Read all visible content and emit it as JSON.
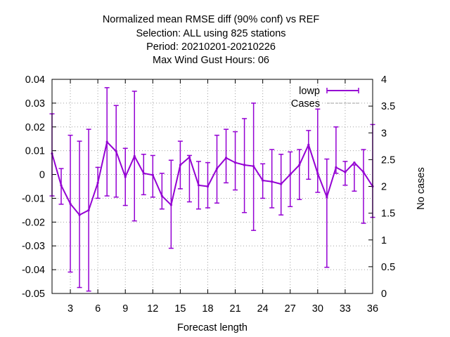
{
  "chart_data": {
    "type": "line",
    "title_lines": [
      "Normalized mean RMSE diff (90% conf) vs REF",
      "Selection: ALL using   825 stations",
      "Period: 20210201-20210226",
      "Max Wind Gust   Hours:  06"
    ],
    "xlabel": "Forecast length",
    "ylabel": "",
    "y2label": "No cases",
    "xlim": [
      1,
      36
    ],
    "ylim": [
      -0.05,
      0.04
    ],
    "y2lim": [
      0,
      4
    ],
    "x_ticks": [
      3,
      6,
      9,
      12,
      15,
      18,
      21,
      24,
      27,
      30,
      33,
      36
    ],
    "y_ticks": [
      -0.05,
      -0.04,
      -0.03,
      -0.02,
      -0.01,
      0,
      0.01,
      0.02,
      0.03,
      0.04
    ],
    "y_tick_labels": [
      "-0.05",
      "-0.04",
      "-0.03",
      "-0.02",
      "-0.01",
      "0",
      "0.01",
      "0.02",
      "0.03",
      "0.04"
    ],
    "y2_ticks": [
      0,
      0.5,
      1,
      1.5,
      2,
      2.5,
      3,
      3.5,
      4
    ],
    "y2_tick_labels": [
      "0",
      "0.5",
      "1",
      "1.5",
      "2",
      "2.5",
      "3",
      "3.5",
      "4"
    ],
    "legend_position": "top-right",
    "colors": {
      "lowp": "#9400d3",
      "cases": "#a0a0a0"
    },
    "series": [
      {
        "name": "lowp",
        "x": [
          1,
          2,
          3,
          4,
          5,
          6,
          7,
          8,
          9,
          10,
          11,
          12,
          13,
          14,
          15,
          16,
          17,
          18,
          19,
          20,
          21,
          22,
          23,
          24,
          25,
          26,
          27,
          28,
          29,
          30,
          31,
          32,
          33,
          34,
          35,
          36
        ],
        "y": [
          0.0088,
          -0.0046,
          -0.0123,
          -0.017,
          -0.015,
          -0.0035,
          0.0137,
          0.0097,
          -0.001,
          0.0077,
          0.0005,
          -0.0002,
          -0.009,
          -0.0128,
          0.004,
          0.0073,
          -0.0045,
          -0.005,
          0.0025,
          0.007,
          0.005,
          0.004,
          0.0035,
          -0.0025,
          -0.003,
          -0.004,
          0.0,
          0.004,
          0.0125,
          0.0005,
          -0.0095,
          0.003,
          0.001,
          0.005,
          0.001,
          -0.005
        ],
        "err_low": [
          -0.009,
          -0.0125,
          -0.041,
          -0.0475,
          -0.049,
          -0.01,
          -0.009,
          -0.0095,
          -0.013,
          -0.0195,
          -0.0085,
          -0.0095,
          -0.0145,
          -0.031,
          -0.006,
          -0.0115,
          -0.0145,
          -0.014,
          -0.012,
          -0.0035,
          -0.0065,
          -0.016,
          -0.0235,
          -0.01,
          -0.014,
          -0.017,
          -0.0135,
          -0.0105,
          -0.002,
          -0.0075,
          -0.039,
          0.0005,
          -0.0045,
          -0.007,
          -0.0205,
          -0.018
        ],
        "err_high": [
          0.0255,
          0.0025,
          0.0165,
          0.014,
          0.019,
          0.003,
          0.0365,
          0.029,
          0.011,
          0.035,
          0.0085,
          0.008,
          0.0005,
          0.006,
          0.014,
          0.008,
          0.0055,
          0.005,
          0.0165,
          0.019,
          0.018,
          0.0235,
          0.03,
          0.0045,
          0.0105,
          0.0085,
          0.0095,
          0.0105,
          0.0185,
          0.0275,
          0.0065,
          0.02,
          0.0055,
          0.004,
          0.0105,
          0.021
        ]
      },
      {
        "name": "Cases",
        "axis": "y2",
        "x": [
          1,
          36
        ],
        "y": [
          4,
          4
        ]
      }
    ]
  }
}
